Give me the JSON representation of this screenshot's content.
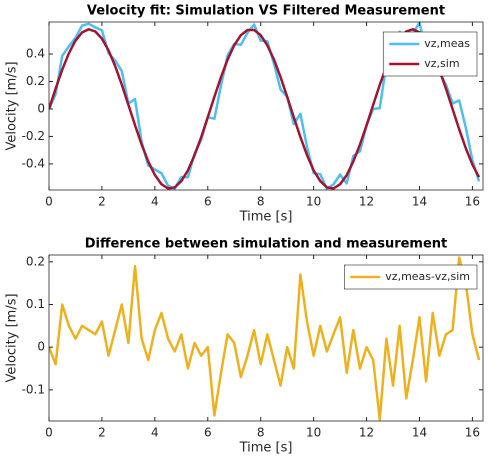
{
  "chart_data": [
    {
      "type": "line",
      "title": "Velocity fit: Simulation VS Filtered Measurement",
      "xlabel": "Time [s]",
      "ylabel": "Velocity [m/s]",
      "x": [
        0,
        0.25,
        0.5,
        0.75,
        1,
        1.25,
        1.5,
        1.75,
        2,
        2.25,
        2.5,
        2.75,
        3,
        3.25,
        3.5,
        3.75,
        4,
        4.25,
        4.5,
        4.75,
        5,
        5.25,
        5.5,
        5.75,
        6,
        6.25,
        6.5,
        6.75,
        7,
        7.25,
        7.5,
        7.75,
        8,
        8.25,
        8.5,
        8.75,
        9,
        9.25,
        9.5,
        9.75,
        10,
        10.25,
        10.5,
        10.75,
        11,
        11.25,
        11.5,
        11.75,
        12,
        12.25,
        12.5,
        12.75,
        13,
        13.25,
        13.5,
        13.75,
        14,
        14.25,
        14.5,
        14.75,
        15,
        15.25,
        15.5,
        15.75,
        16,
        16.25
      ],
      "series": [
        {
          "name": "vz,meas",
          "color": "#4dbeee",
          "values": [
            0,
            0.108,
            0.386,
            0.455,
            0.517,
            0.607,
            0.62,
            0.594,
            0.572,
            0.406,
            0.352,
            0.277,
            0.04,
            0.072,
            -0.239,
            -0.412,
            -0.44,
            -0.468,
            -0.559,
            -0.581,
            -0.495,
            -0.497,
            -0.326,
            -0.226,
            -0.06,
            -0.071,
            0.172,
            0.39,
            0.474,
            0.467,
            0.555,
            0.615,
            0.497,
            0.493,
            0.33,
            0.142,
            0.089,
            -0.11,
            -0.035,
            -0.276,
            -0.467,
            -0.475,
            -0.581,
            -0.549,
            -0.478,
            -0.542,
            -0.342,
            -0.309,
            -0.119,
            0,
            0.006,
            0.331,
            0.336,
            0.562,
            0.444,
            0.55,
            0.627,
            0.417,
            0.485,
            0.266,
            0.178,
            0.04,
            0.062,
            -0.136,
            -0.375,
            -0.527
          ]
        },
        {
          "name": "vz,sim",
          "color": "#a2142f",
          "values": [
            0,
            0.148,
            0.286,
            0.405,
            0.497,
            0.557,
            0.58,
            0.564,
            0.512,
            0.426,
            0.312,
            0.177,
            0.03,
            -0.118,
            -0.259,
            -0.382,
            -0.48,
            -0.548,
            -0.579,
            -0.571,
            -0.525,
            -0.447,
            -0.336,
            -0.206,
            -0.06,
            0.089,
            0.232,
            0.36,
            0.464,
            0.537,
            0.575,
            0.575,
            0.537,
            0.463,
            0.36,
            0.232,
            0.089,
            -0.06,
            -0.205,
            -0.336,
            -0.447,
            -0.525,
            -0.571,
            -0.579,
            -0.548,
            -0.482,
            -0.382,
            -0.259,
            -0.119,
            0.03,
            0.176,
            0.311,
            0.426,
            0.512,
            0.564,
            0.58,
            0.557,
            0.497,
            0.405,
            0.286,
            0.148,
            0,
            -0.148,
            -0.286,
            -0.405,
            -0.497
          ]
        }
      ],
      "xlim": [
        0,
        16.4
      ],
      "xticks": [
        0,
        2,
        4,
        6,
        8,
        10,
        12,
        14,
        16
      ],
      "ylim": [
        -0.59,
        0.633
      ],
      "yticks": [
        -0.4,
        -0.2,
        0,
        0.2,
        0.4
      ],
      "legend": "upper right"
    },
    {
      "type": "line",
      "title": "Difference between simulation and measurement",
      "xlabel": "Time [s]",
      "ylabel": "Velocity [m/s]",
      "x": [
        0,
        0.25,
        0.5,
        0.75,
        1,
        1.25,
        1.5,
        1.75,
        2,
        2.25,
        2.5,
        2.75,
        3,
        3.25,
        3.5,
        3.75,
        4,
        4.25,
        4.5,
        4.75,
        5,
        5.25,
        5.5,
        5.75,
        6,
        6.25,
        6.5,
        6.75,
        7,
        7.25,
        7.5,
        7.75,
        8,
        8.25,
        8.5,
        8.75,
        9,
        9.25,
        9.5,
        9.75,
        10,
        10.25,
        10.5,
        10.75,
        11,
        11.25,
        11.5,
        11.75,
        12,
        12.25,
        12.5,
        12.75,
        13,
        13.25,
        13.5,
        13.75,
        14,
        14.25,
        14.5,
        14.75,
        15,
        15.25,
        15.5,
        15.75,
        16,
        16.25
      ],
      "series": [
        {
          "name": "vz,meas-vz,sim",
          "color": "#edb120",
          "values": [
            0,
            -0.04,
            0.1,
            0.05,
            0.02,
            0.05,
            0.04,
            0.03,
            0.06,
            -0.02,
            0.04,
            0.1,
            0.01,
            0.19,
            0.02,
            -0.03,
            0.04,
            0.08,
            0.02,
            -0.01,
            0.03,
            -0.05,
            0.01,
            -0.02,
            0,
            -0.16,
            -0.06,
            0.03,
            0.01,
            -0.07,
            -0.02,
            0.04,
            -0.04,
            0.03,
            -0.03,
            -0.09,
            0,
            -0.05,
            0.17,
            0.06,
            -0.02,
            0.05,
            -0.01,
            0.03,
            0.07,
            -0.06,
            0.04,
            -0.05,
            0,
            -0.03,
            -0.17,
            0.02,
            -0.09,
            0.05,
            -0.12,
            -0.03,
            0.07,
            -0.08,
            0.08,
            -0.02,
            0.03,
            0.04,
            0.21,
            0.15,
            0.03,
            -0.03
          ]
        }
      ],
      "xlim": [
        0,
        16.4
      ],
      "xticks": [
        0,
        2,
        4,
        6,
        8,
        10,
        12,
        14,
        16
      ],
      "ylim": [
        -0.173,
        0.216
      ],
      "yticks": [
        -0.1,
        0,
        0.1,
        0.2
      ],
      "legend": "upper right"
    }
  ]
}
